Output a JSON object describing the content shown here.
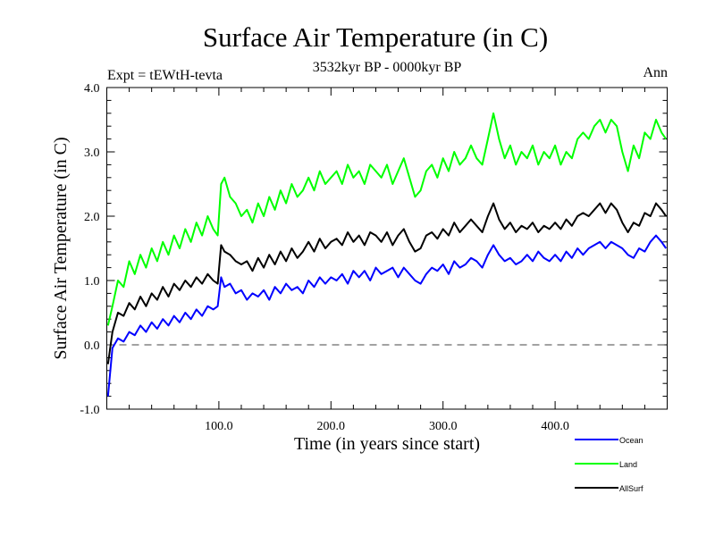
{
  "chart_data": {
    "type": "line",
    "title": "Surface Air Temperature (in C)",
    "subtitle": "3532kyr BP - 0000kyr BP",
    "left_annotation": "Expt = tEWtH-tevta",
    "right_annotation": "Ann",
    "xlabel": "Time (in years since start)",
    "ylabel": "Surface Air Temperature (in C)",
    "xlim": [
      0,
      500
    ],
    "ylim": [
      -1.0,
      4.0
    ],
    "x_ticks": [
      100,
      200,
      300,
      400
    ],
    "x_tick_labels": [
      "100.0",
      "200.0",
      "300.0",
      "400.0"
    ],
    "x_minor_step": 20,
    "y_ticks": [
      -1.0,
      0.0,
      1.0,
      2.0,
      3.0,
      4.0
    ],
    "y_tick_labels": [
      "-1.0",
      "0.0",
      "1.0",
      "2.0",
      "3.0",
      "4.0"
    ],
    "y_minor_step": 0.2,
    "reference_line": {
      "y": 0.0,
      "style": "dashed"
    },
    "grid": false,
    "legend_position": "bottom-right",
    "x": [
      1,
      5,
      10,
      15,
      20,
      25,
      30,
      35,
      40,
      45,
      50,
      55,
      60,
      65,
      70,
      75,
      80,
      85,
      90,
      95,
      99,
      102,
      105,
      110,
      115,
      120,
      125,
      130,
      135,
      140,
      145,
      150,
      155,
      160,
      165,
      170,
      175,
      180,
      185,
      190,
      195,
      200,
      205,
      210,
      215,
      220,
      225,
      230,
      235,
      240,
      245,
      250,
      255,
      260,
      265,
      270,
      275,
      280,
      285,
      290,
      295,
      300,
      305,
      310,
      315,
      320,
      325,
      330,
      335,
      340,
      345,
      350,
      355,
      360,
      365,
      370,
      375,
      380,
      385,
      390,
      395,
      400,
      405,
      410,
      415,
      420,
      425,
      430,
      435,
      440,
      445,
      450,
      455,
      460,
      465,
      470,
      475,
      480,
      485,
      490,
      495,
      499
    ],
    "series": [
      {
        "name": "Ocean",
        "color": "#0000ff",
        "values": [
          -0.8,
          -0.05,
          0.1,
          0.05,
          0.2,
          0.15,
          0.3,
          0.2,
          0.35,
          0.25,
          0.4,
          0.3,
          0.45,
          0.35,
          0.5,
          0.4,
          0.55,
          0.45,
          0.6,
          0.55,
          0.6,
          1.05,
          0.9,
          0.95,
          0.8,
          0.85,
          0.7,
          0.8,
          0.75,
          0.85,
          0.7,
          0.9,
          0.8,
          0.95,
          0.85,
          0.9,
          0.8,
          1.0,
          0.9,
          1.05,
          0.95,
          1.05,
          1.0,
          1.1,
          0.95,
          1.15,
          1.05,
          1.15,
          1.0,
          1.2,
          1.1,
          1.15,
          1.2,
          1.05,
          1.2,
          1.1,
          1.0,
          0.95,
          1.1,
          1.2,
          1.15,
          1.25,
          1.1,
          1.3,
          1.2,
          1.25,
          1.35,
          1.3,
          1.2,
          1.4,
          1.55,
          1.4,
          1.3,
          1.35,
          1.25,
          1.3,
          1.4,
          1.3,
          1.45,
          1.35,
          1.3,
          1.4,
          1.3,
          1.45,
          1.35,
          1.5,
          1.4,
          1.5,
          1.55,
          1.6,
          1.5,
          1.6,
          1.55,
          1.5,
          1.4,
          1.35,
          1.5,
          1.45,
          1.6,
          1.7,
          1.6,
          1.5
        ]
      },
      {
        "name": "Land",
        "color": "#00ff00",
        "values": [
          0.3,
          0.6,
          1.0,
          0.9,
          1.3,
          1.1,
          1.4,
          1.2,
          1.5,
          1.3,
          1.6,
          1.4,
          1.7,
          1.5,
          1.8,
          1.6,
          1.9,
          1.7,
          2.0,
          1.8,
          1.7,
          2.5,
          2.6,
          2.3,
          2.2,
          2.0,
          2.1,
          1.9,
          2.2,
          2.0,
          2.3,
          2.1,
          2.4,
          2.2,
          2.5,
          2.3,
          2.4,
          2.6,
          2.4,
          2.7,
          2.5,
          2.6,
          2.7,
          2.5,
          2.8,
          2.6,
          2.7,
          2.5,
          2.8,
          2.7,
          2.6,
          2.8,
          2.5,
          2.7,
          2.9,
          2.6,
          2.3,
          2.4,
          2.7,
          2.8,
          2.6,
          2.9,
          2.7,
          3.0,
          2.8,
          2.9,
          3.1,
          2.9,
          2.8,
          3.2,
          3.6,
          3.2,
          2.9,
          3.1,
          2.8,
          3.0,
          2.9,
          3.1,
          2.8,
          3.0,
          2.9,
          3.1,
          2.8,
          3.0,
          2.9,
          3.2,
          3.3,
          3.2,
          3.4,
          3.5,
          3.3,
          3.5,
          3.4,
          3.0,
          2.7,
          3.1,
          2.9,
          3.3,
          3.2,
          3.5,
          3.3,
          3.2
        ]
      },
      {
        "name": "AllSurf",
        "color": "#000000",
        "values": [
          -0.3,
          0.2,
          0.5,
          0.45,
          0.65,
          0.55,
          0.75,
          0.6,
          0.8,
          0.7,
          0.9,
          0.75,
          0.95,
          0.85,
          1.0,
          0.9,
          1.05,
          0.95,
          1.1,
          1.0,
          0.95,
          1.55,
          1.45,
          1.4,
          1.3,
          1.25,
          1.3,
          1.15,
          1.35,
          1.2,
          1.4,
          1.25,
          1.45,
          1.3,
          1.5,
          1.35,
          1.45,
          1.6,
          1.45,
          1.65,
          1.5,
          1.6,
          1.65,
          1.55,
          1.75,
          1.6,
          1.7,
          1.55,
          1.75,
          1.7,
          1.6,
          1.75,
          1.55,
          1.7,
          1.8,
          1.6,
          1.45,
          1.5,
          1.7,
          1.75,
          1.65,
          1.8,
          1.7,
          1.9,
          1.75,
          1.85,
          1.95,
          1.85,
          1.75,
          2.0,
          2.2,
          1.95,
          1.8,
          1.9,
          1.75,
          1.85,
          1.8,
          1.9,
          1.75,
          1.85,
          1.8,
          1.9,
          1.8,
          1.95,
          1.85,
          2.0,
          2.05,
          2.0,
          2.1,
          2.2,
          2.05,
          2.2,
          2.1,
          1.9,
          1.75,
          1.9,
          1.85,
          2.05,
          2.0,
          2.2,
          2.1,
          2.0
        ]
      }
    ]
  }
}
